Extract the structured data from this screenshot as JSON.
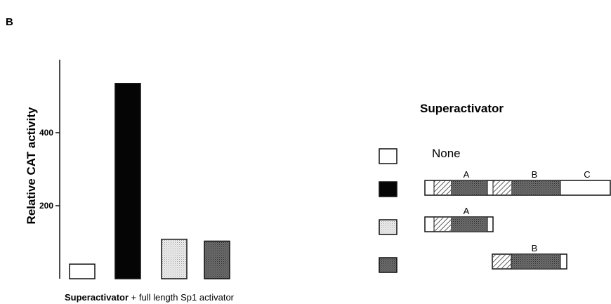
{
  "panel_label": "B",
  "chart_data": {
    "type": "bar",
    "categories": [
      "None",
      "A+B+C",
      "A",
      "B"
    ],
    "values": [
      40,
      535,
      108,
      103
    ],
    "fills": [
      "white",
      "black",
      "light-stipple",
      "dark-stipple"
    ],
    "ylabel": "Relative CAT activity",
    "yticks": [
      200,
      400
    ],
    "ylim": [
      0,
      600
    ],
    "xlabel_bold": "Superactivator",
    "xlabel_rest": " + full length Sp1 activator"
  },
  "legend": {
    "title": "Superactivator",
    "none_label": "None",
    "rows": [
      {
        "swatch": "white",
        "construct": "none"
      },
      {
        "swatch": "black",
        "construct": "full"
      },
      {
        "swatch": "light-stipple",
        "construct": "A"
      },
      {
        "swatch": "dark-stipple",
        "construct": "B"
      }
    ],
    "domain_labels": {
      "a": "A",
      "b": "B",
      "c": "C"
    }
  },
  "colors": {
    "ink": "#111111",
    "black_fill": "#050505",
    "light_stipple_bg": "#f0f0f0",
    "dark_stipple_bg": "#7a7a7a"
  }
}
